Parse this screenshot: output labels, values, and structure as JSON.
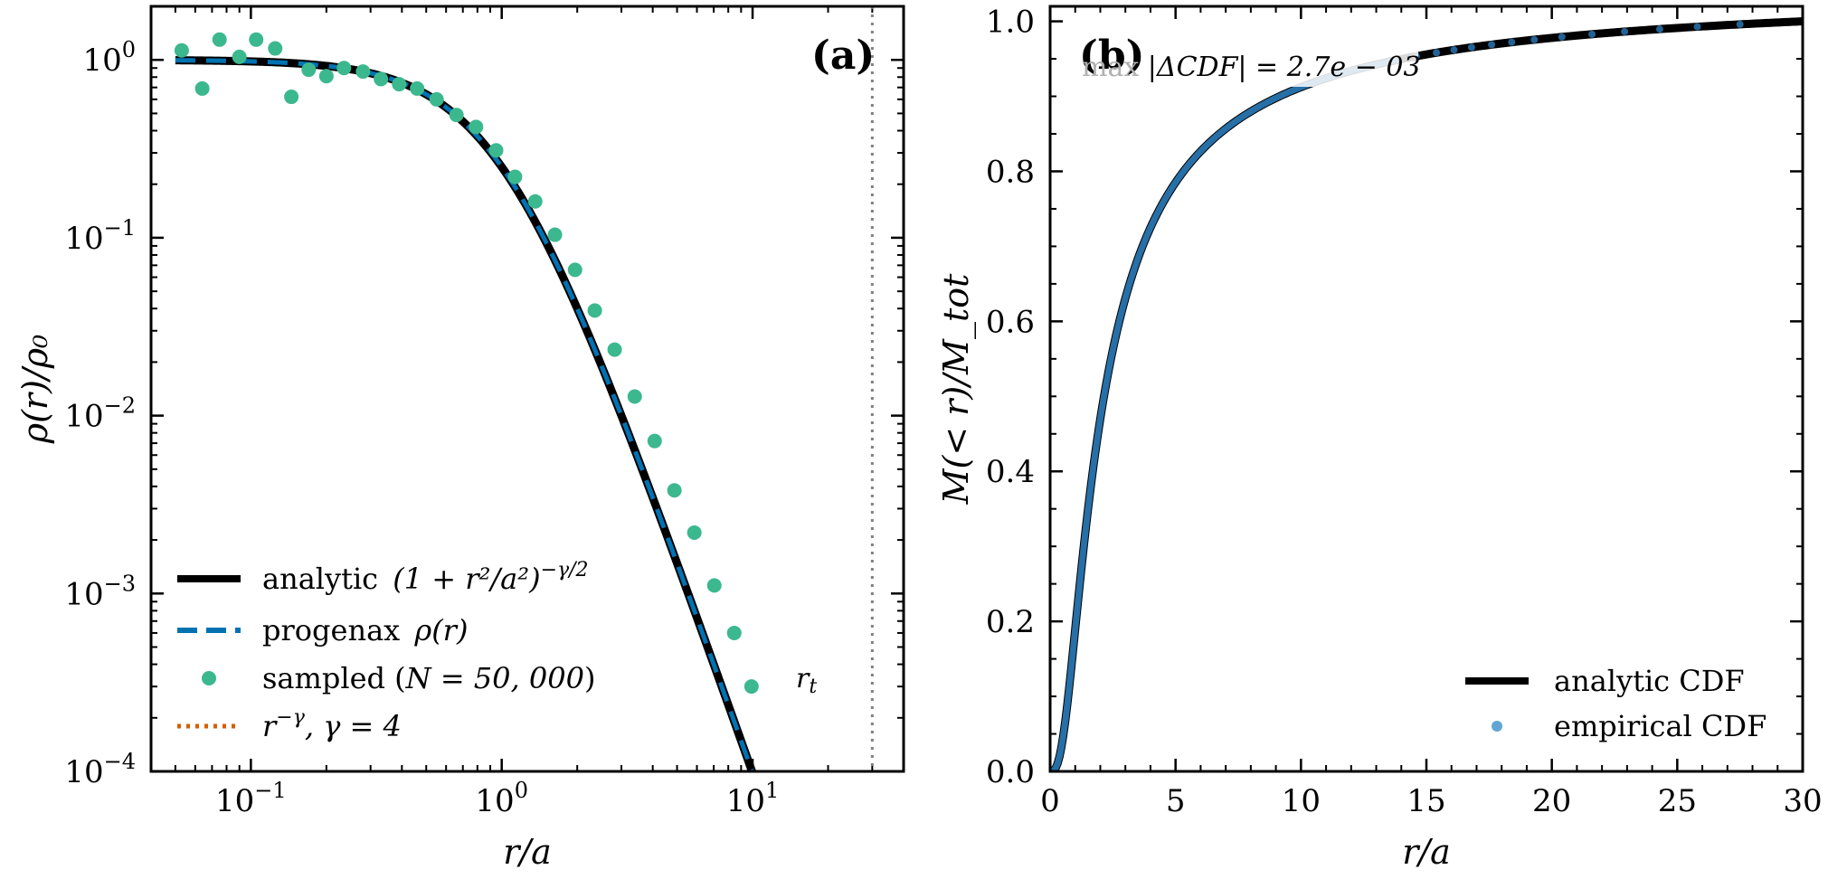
{
  "chart_data": [
    {
      "panel": "(a)",
      "type": "line",
      "xscale": "log",
      "yscale": "log",
      "xlim": [
        0.04,
        40
      ],
      "ylim": [
        0.0001,
        2
      ],
      "xlabel": "r/a",
      "ylabel": "ρ(r)/ρ₀",
      "x_ticks": [
        {
          "v": 0.1,
          "base": "10",
          "exp": "−1"
        },
        {
          "v": 1,
          "base": "10",
          "exp": "0"
        },
        {
          "v": 10,
          "base": "10",
          "exp": "1"
        }
      ],
      "y_ticks": [
        {
          "v": 1,
          "base": "10",
          "exp": "0"
        },
        {
          "v": 0.1,
          "base": "10",
          "exp": "−1"
        },
        {
          "v": 0.01,
          "base": "10",
          "exp": "−2"
        },
        {
          "v": 0.001,
          "base": "10",
          "exp": "−3"
        },
        {
          "v": 0.0001,
          "base": "10",
          "exp": "−4"
        }
      ],
      "gamma": 4,
      "analytic_range": [
        0.05,
        10
      ],
      "vline": {
        "x": 30,
        "label": "r_t"
      },
      "series": [
        {
          "name": "analytic (1 + r²/a²)^(−γ/2)",
          "style": "solid",
          "color": "#000000"
        },
        {
          "name": "progenax ρ(r)",
          "style": "dashed",
          "color": "#0072b2"
        },
        {
          "name": "sampled (N = 50,000)",
          "style": "markers",
          "color": "#3cb88e",
          "x": [
            0.053,
            0.064,
            0.075,
            0.09,
            0.105,
            0.125,
            0.145,
            0.17,
            0.2,
            0.235,
            0.28,
            0.33,
            0.39,
            0.46,
            0.55,
            0.66,
            0.79,
            0.95,
            1.13,
            1.36,
            1.63,
            1.96,
            2.35,
            2.82,
            3.39,
            4.07,
            4.88,
            5.86,
            7.04,
            8.45,
            9.9
          ],
          "y": [
            1.13,
            0.69,
            1.3,
            1.04,
            1.3,
            1.16,
            0.62,
            0.88,
            0.81,
            0.9,
            0.86,
            0.78,
            0.73,
            0.69,
            0.6,
            0.49,
            0.42,
            0.31,
            0.22,
            0.16,
            0.104,
            0.066,
            0.039,
            0.0235,
            0.0128,
            0.0072,
            0.0038,
            0.0022,
            0.00111,
            0.0006,
            0.0003
          ]
        },
        {
          "name": "r^(−γ), γ = 4",
          "style": "dotted",
          "color": "#d55e00"
        }
      ],
      "legend_position": "lower left",
      "legend": {
        "analytic_text": "analytic",
        "analytic_formula": "(1 + r²/a²)",
        "analytic_exp": "−γ/2",
        "progenax_text": "progenax",
        "progenax_formula": "ρ(r)",
        "sampled_text": "sampled (",
        "sampled_formula": "N = 50, 000",
        "sampled_close": ")",
        "powerlaw_base": "r",
        "powerlaw_exp": "−γ",
        "powerlaw_rest": ",  γ = 4"
      }
    },
    {
      "panel": "(b)",
      "type": "line",
      "xscale": "linear",
      "yscale": "linear",
      "xlim": [
        0,
        30
      ],
      "ylim": [
        0,
        1.02
      ],
      "xlabel": "r/a",
      "ylabel": "M(< r)/M_tot",
      "x_ticks": [
        "0",
        "5",
        "10",
        "15",
        "20",
        "25",
        "30"
      ],
      "y_ticks": [
        "0.0",
        "0.2",
        "0.4",
        "0.6",
        "0.8",
        "1.0"
      ],
      "annotation_prefix": "max ",
      "annotation_value": "|ΔCDF| = 2.7e − 03",
      "series": [
        {
          "name": "analytic CDF",
          "style": "solid",
          "color": "#000000"
        },
        {
          "name": "empirical CDF",
          "style": "markers",
          "color": "#3b8fc9"
        }
      ],
      "legend_position": "lower right"
    }
  ]
}
